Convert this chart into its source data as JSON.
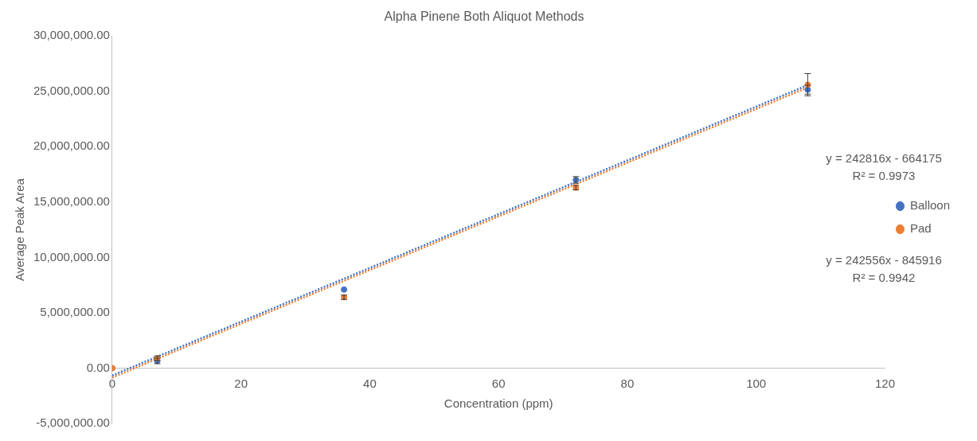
{
  "chart_data": {
    "type": "scatter",
    "title": "Alpha Pinene Both Aliquot Methods",
    "xlabel": "Concentration (ppm)",
    "ylabel": "Average Peak Area",
    "x": [
      0,
      7,
      36,
      72,
      108
    ],
    "series": [
      {
        "name": "Balloon",
        "color": "#4472c4",
        "values": [
          0,
          650000,
          7100000,
          17000000,
          25150000
        ],
        "errors": [
          null,
          250000,
          null,
          300000,
          400000
        ]
      },
      {
        "name": "Pad",
        "color": "#ed7d31",
        "values": [
          0,
          900000,
          6400000,
          16300000,
          25600000
        ],
        "errors": [
          null,
          200000,
          200000,
          200000,
          1000000
        ]
      },
      {
        "type": "line",
        "color": "#4472c4",
        "values": [
          -660000,
          1040000,
          8080000,
          16820000,
          25560000
        ],
        "line_style": "dotted",
        "marker": "none"
      },
      {
        "type": "line",
        "color": "#ed7d31",
        "values": [
          -850000,
          850000,
          7890000,
          16620000,
          25350000
        ],
        "line_style": "dotted",
        "marker": "none"
      }
    ],
    "xlim": [
      0,
      120
    ],
    "xticks": [
      0,
      20,
      40,
      60,
      80,
      100,
      120
    ],
    "ylim": [
      -5000000,
      30000000
    ],
    "yticks": [
      {
        "value": -5000000,
        "label": "-5,000,000.00"
      },
      {
        "value": 0,
        "label": "0.00"
      },
      {
        "value": 5000000,
        "label": "5,000,000.00"
      },
      {
        "value": 10000000,
        "label": "10,000,000.00"
      },
      {
        "value": 15000000,
        "label": "15,000,000.00"
      },
      {
        "value": 20000000,
        "label": "20,000,000.00"
      },
      {
        "value": 25000000,
        "label": "25,000,000.00"
      },
      {
        "value": 30000000,
        "label": "30,000,000.00"
      }
    ],
    "annotations": [
      "y = 242816x - 664175\nR² = 0.9973",
      "y = 242556x - 845916\nR² = 0.9942"
    ],
    "legend": "right",
    "grid": false,
    "marker": "circle"
  }
}
